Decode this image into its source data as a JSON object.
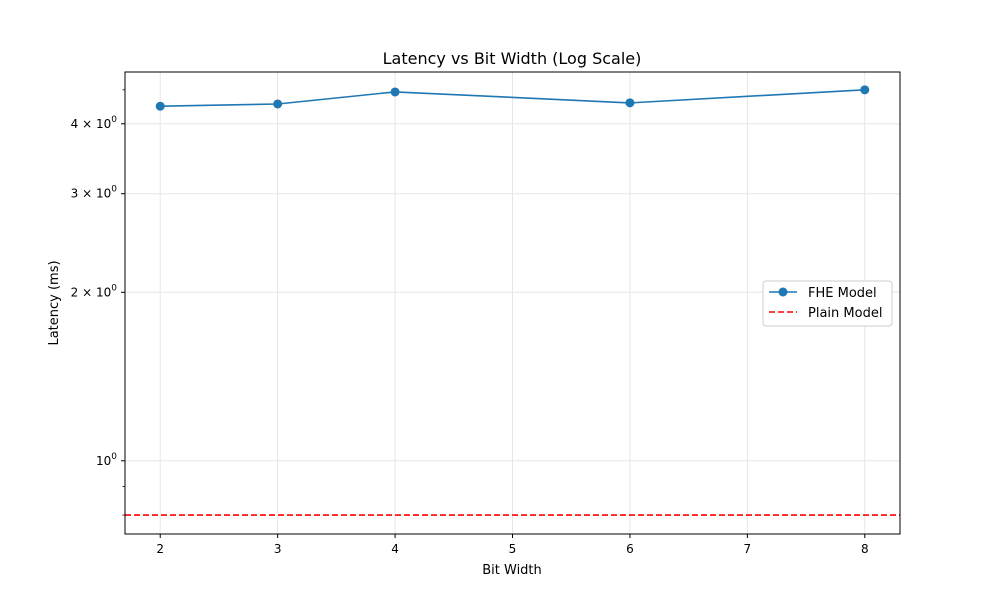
{
  "chart_data": {
    "type": "line",
    "title": "Latency vs Bit Width (Log Scale)",
    "xlabel": "Bit Width",
    "ylabel": "Latency (ms)",
    "x_scale": "linear",
    "y_scale": "log",
    "xlim": [
      1.7,
      8.3
    ],
    "ylim": [
      0.74,
      4.95
    ],
    "x_ticks": [
      2,
      3,
      4,
      5,
      6,
      7,
      8
    ],
    "x_tick_labels": [
      "2",
      "3",
      "4",
      "5",
      "6",
      "7",
      "8"
    ],
    "y_major_ticks": [
      {
        "value": 1,
        "base": "10",
        "exp": "0",
        "mult": ""
      },
      {
        "value": 2,
        "base": "10",
        "exp": "0",
        "mult": "2 × "
      },
      {
        "value": 3,
        "base": "10",
        "exp": "0",
        "mult": "3 × "
      },
      {
        "value": 4,
        "base": "10",
        "exp": "0",
        "mult": "4 × "
      }
    ],
    "y_minor_ticks": [
      0.8,
      0.9,
      4.6
    ],
    "grid": true,
    "legend_position": "center-right",
    "series": [
      {
        "name": "FHE Model",
        "style": "solid-line-with-markers",
        "color": "#1f77b4",
        "x": [
          2,
          3,
          4,
          6,
          8
        ],
        "y": [
          4.3,
          4.34,
          4.56,
          4.36,
          4.6
        ]
      },
      {
        "name": "Plain Model",
        "style": "dashed-line",
        "color": "#ff0000",
        "y_constant": 0.8
      }
    ]
  }
}
